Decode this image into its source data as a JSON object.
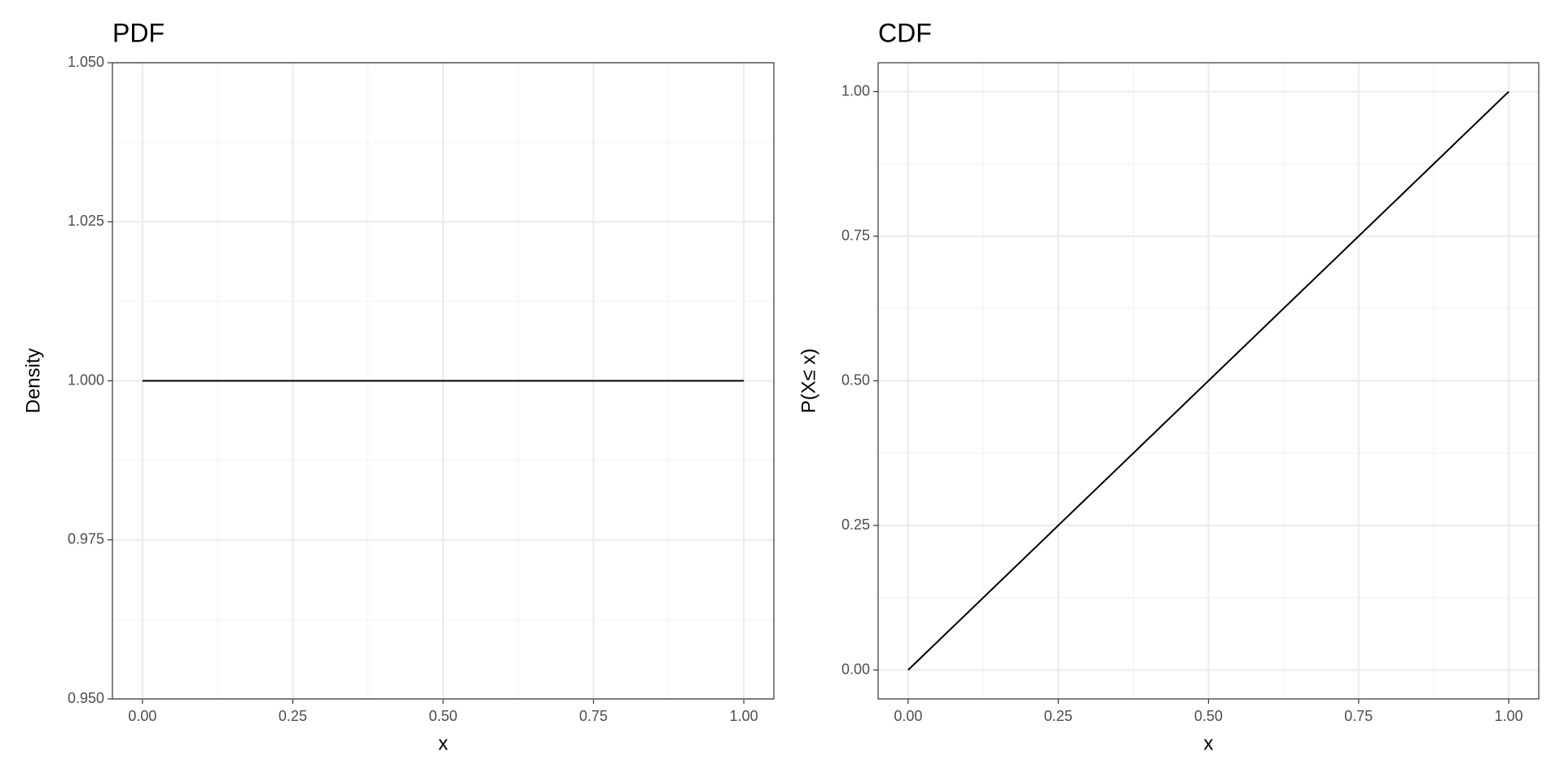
{
  "chart_data": [
    {
      "type": "line",
      "title": "PDF",
      "x_label": "x",
      "y_label": "Density",
      "x": [
        0,
        1
      ],
      "series": [
        {
          "color": "#000000",
          "values": [
            1,
            1
          ]
        }
      ],
      "xlim": [
        -0.05,
        1.05
      ],
      "ylim": [
        0.95,
        1.05
      ],
      "xticks": [
        {
          "value": 0,
          "label": "0.00"
        },
        0.25,
        {
          "value": 0.5,
          "label": "0.50"
        },
        0.75,
        {
          "value": 1,
          "label": "1.00"
        }
      ],
      "yticks": [
        {
          "value": 0.95,
          "label": "0.950"
        },
        {
          "value": 0.975,
          "label": "0.975"
        },
        {
          "value": 1,
          "label": "1.000"
        },
        {
          "value": 1.025,
          "label": "1.025"
        },
        {
          "value": 1.05,
          "label": "1.050"
        }
      ],
      "x_minor_grid": [
        0.125,
        0.375,
        0.625,
        0.875
      ],
      "y_minor_grid": [
        0.9625,
        0.9875,
        1.0125,
        1.0375
      ],
      "grid": true
    },
    {
      "type": "line",
      "title": "CDF",
      "x_label": "x",
      "y_label": "P(X≤ x)",
      "x": [
        0,
        1
      ],
      "series": [
        {
          "color": "#000000",
          "values": [
            0,
            1
          ]
        }
      ],
      "xlim": [
        -0.05,
        1.05
      ],
      "ylim": [
        -0.05,
        1.05
      ],
      "xticks": [
        {
          "value": 0,
          "label": "0.00"
        },
        0.25,
        {
          "value": 0.5,
          "label": "0.50"
        },
        0.75,
        {
          "value": 1,
          "label": "1.00"
        }
      ],
      "yticks": [
        {
          "value": 0,
          "label": "0.00"
        },
        0.25,
        {
          "value": 0.5,
          "label": "0.50"
        },
        0.75,
        {
          "value": 1,
          "label": "1.00"
        }
      ],
      "x_minor_grid": [
        0.125,
        0.375,
        0.625,
        0.875
      ],
      "y_minor_grid": [
        0.125,
        0.375,
        0.625,
        0.875
      ],
      "grid": true
    }
  ]
}
